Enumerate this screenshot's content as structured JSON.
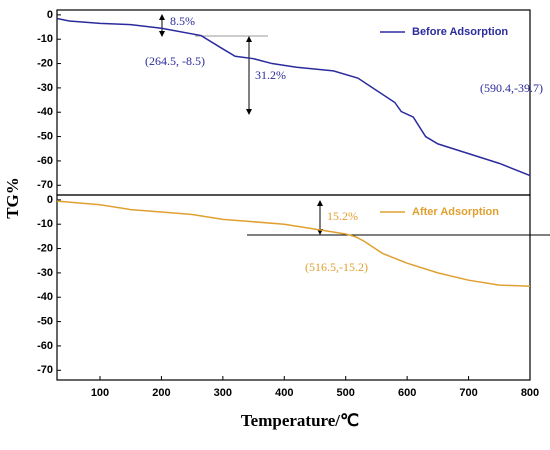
{
  "chart_data": [
    {
      "type": "line",
      "ylabel": "TG%",
      "x": [
        30,
        50,
        100,
        150,
        200,
        264.5,
        300,
        320,
        350,
        380,
        420,
        480,
        520,
        550,
        580,
        590.4,
        610,
        630,
        650,
        700,
        750,
        800
      ],
      "series": [
        {
          "name": "Before Adsorption",
          "color": "#2b2b9e",
          "values": [
            -1.5,
            -2.5,
            -3.5,
            -4,
            -5.5,
            -8.5,
            -14,
            -17,
            -18,
            -20,
            -21.5,
            -23,
            -26,
            -31,
            -36,
            -39.7,
            -42,
            -50,
            -53,
            -57,
            -61,
            -66
          ]
        }
      ],
      "xlim": [
        30,
        800
      ],
      "ylim": [
        -74,
        2
      ],
      "yticks": [
        0,
        -10,
        -20,
        -30,
        -40,
        -50,
        -60,
        -70
      ],
      "annotations": [
        "8.5%",
        "(264.5, -8.5)",
        "31.2%",
        "(590.4,-39.7)"
      ]
    },
    {
      "type": "line",
      "xlabel": "Temperature/℃",
      "x": [
        30,
        100,
        150,
        200,
        250,
        300,
        350,
        400,
        450,
        500,
        516.5,
        530,
        560,
        600,
        650,
        700,
        750,
        800
      ],
      "series": [
        {
          "name": "After Adsorption",
          "color": "#e0a030",
          "values": [
            -0.5,
            -2,
            -4,
            -5,
            -6,
            -8,
            -9,
            -10,
            -12,
            -14,
            -15.2,
            -17,
            -22,
            -26,
            -30,
            -33,
            -35,
            -35.5
          ]
        }
      ],
      "xlim": [
        30,
        800
      ],
      "ylim": [
        -74,
        2
      ],
      "xticks": [
        100,
        200,
        300,
        400,
        500,
        600,
        700,
        800
      ],
      "yticks": [
        0,
        -10,
        -20,
        -30,
        -40,
        -50,
        -60,
        -70
      ],
      "annotations": [
        "15.2%",
        "(516.5,-15.2)"
      ]
    }
  ]
}
